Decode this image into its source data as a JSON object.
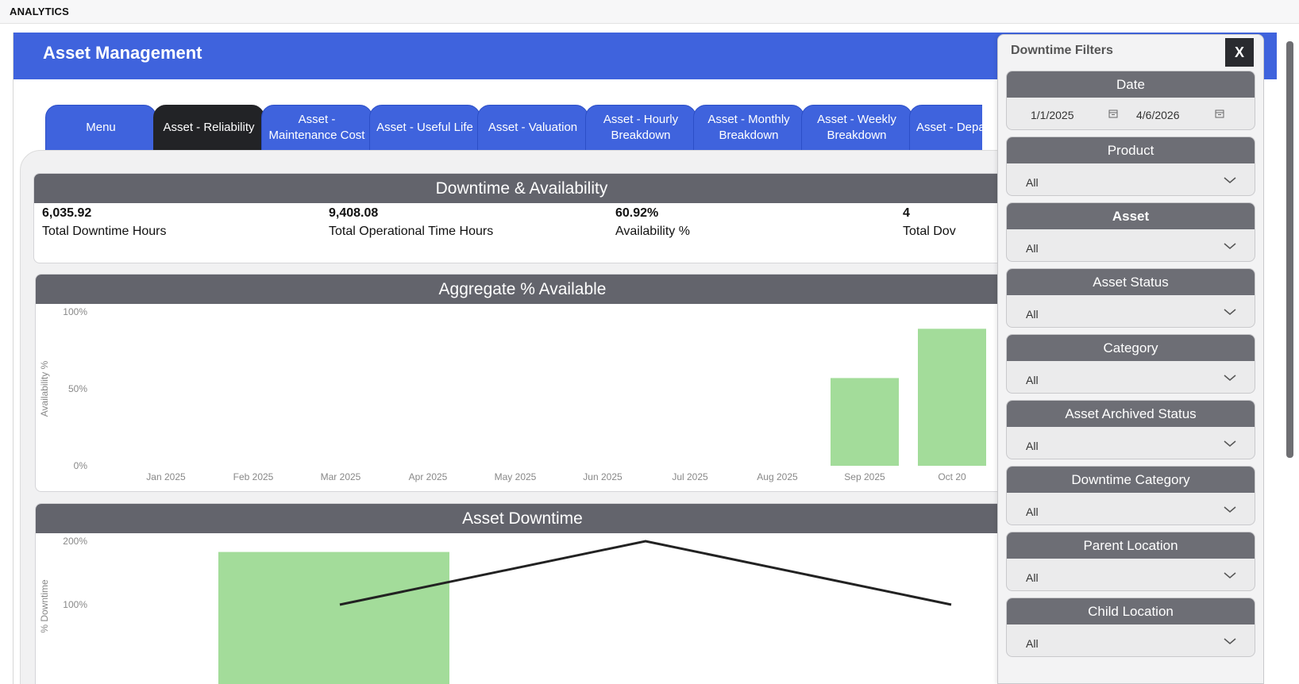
{
  "topbar": {
    "title": "ANALYTICS"
  },
  "header": {
    "app_title": "Asset Management"
  },
  "tabs": [
    {
      "label": "Menu",
      "active": false
    },
    {
      "label": "Asset - Reliability",
      "active": true
    },
    {
      "label": "Asset - Maintenance Cost",
      "active": false
    },
    {
      "label": "Asset - Useful Life",
      "active": false
    },
    {
      "label": "Asset - Valuation",
      "active": false
    },
    {
      "label": "Asset - Hourly Breakdown",
      "active": false
    },
    {
      "label": "Asset - Monthly Breakdown",
      "active": false
    },
    {
      "label": "Asset - Weekly Breakdown",
      "active": false
    },
    {
      "label": "Asset - Departi",
      "active": false
    }
  ],
  "kpis": {
    "title": "Downtime & Availability",
    "items": [
      {
        "value": "6,035.92",
        "label": "Total Downtime Hours"
      },
      {
        "value": "9,408.08",
        "label": "Total Operational Time Hours"
      },
      {
        "value": "60.92%",
        "label": "Availability %"
      },
      {
        "value": "4",
        "label": "Total Dov"
      }
    ]
  },
  "colors": {
    "brand": "#3f63dd",
    "section_header": "#63646c",
    "bar": "#a3dc9a",
    "tab_active": "#222326"
  },
  "chart_data": [
    {
      "type": "bar",
      "title": "Aggregate % Available",
      "ylabel": "Availability %",
      "xlabel": "",
      "ylim": [
        0,
        100
      ],
      "yticks": [
        "100%",
        "50%",
        "0%"
      ],
      "categories": [
        "Jan 2025",
        "Feb 2025",
        "Mar 2025",
        "Apr 2025",
        "May 2025",
        "Jun 2025",
        "Jul 2025",
        "Aug 2025",
        "Sep 2025",
        "Oct 20"
      ],
      "values": [
        0,
        0,
        0,
        0,
        0,
        0,
        0,
        0,
        57,
        89
      ]
    },
    {
      "type": "bar",
      "title": "Asset Downtime",
      "ylabel": "% Downtime",
      "xlabel": "",
      "ylim": [
        0,
        200
      ],
      "yticks": [
        "200%",
        "100%"
      ],
      "bars": [
        {
          "value": 183
        }
      ],
      "line": [
        {
          "value": 100
        },
        {
          "value": 200
        },
        {
          "value": 100
        }
      ]
    }
  ],
  "filters_panel": {
    "title": "Downtime Filters",
    "close_label": "X",
    "date": {
      "label": "Date",
      "start": "1/1/2025",
      "end": "4/6/2026"
    },
    "filters": [
      {
        "label": "Product",
        "value": "All"
      },
      {
        "label": "Asset",
        "value": "All"
      },
      {
        "label": "Asset Status",
        "value": "All"
      },
      {
        "label": "Category",
        "value": "All"
      },
      {
        "label": "Asset Archived Status",
        "value": "All"
      },
      {
        "label": "Downtime Category",
        "value": "All"
      },
      {
        "label": "Parent Location",
        "value": "All"
      },
      {
        "label": "Child Location",
        "value": "All"
      }
    ]
  }
}
